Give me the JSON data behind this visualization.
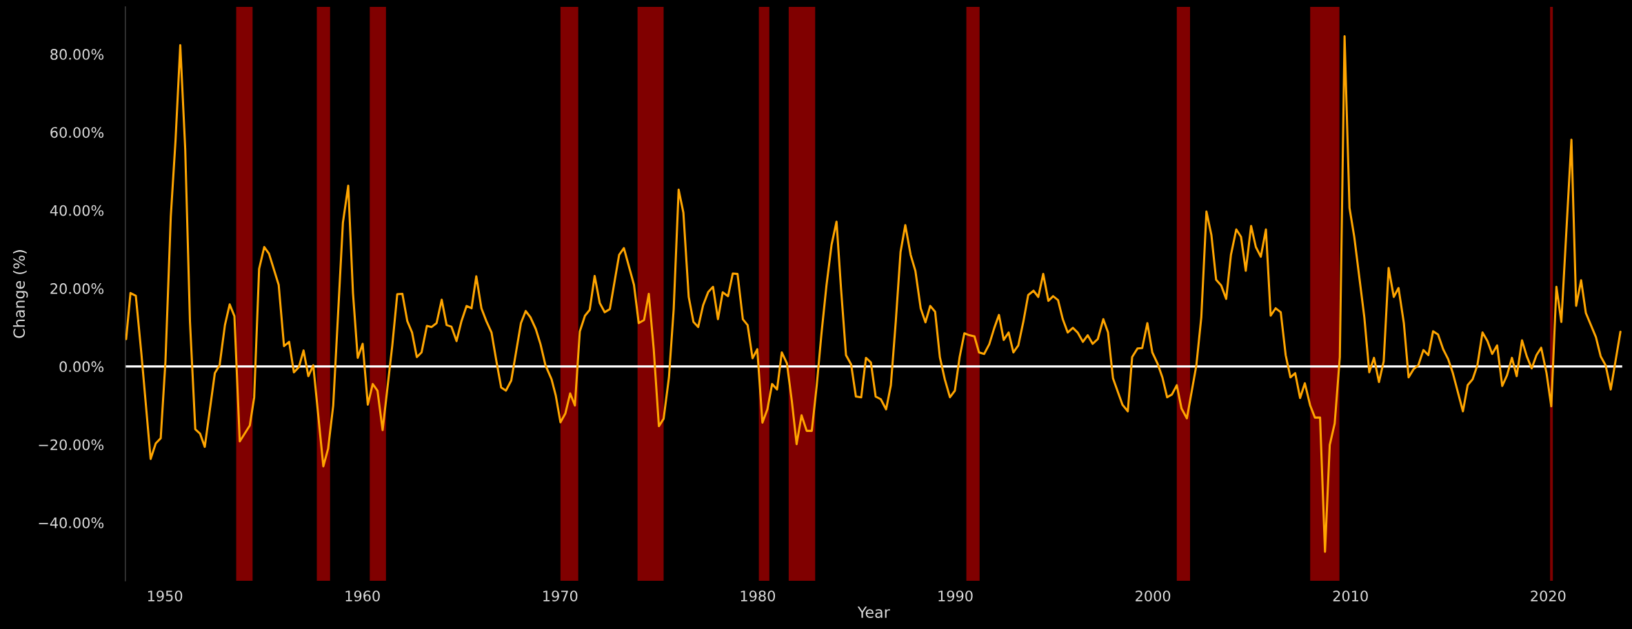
{
  "chart_data": {
    "type": "line",
    "xlabel": "Year",
    "ylabel": "Change (%)",
    "x": [
      1948.04,
      1948.26,
      1948.53,
      1948.81,
      1949.28,
      1949.54,
      1949.79,
      1950.03,
      1950.3,
      1950.54,
      1950.78,
      1951.03,
      1951.27,
      1951.54,
      1951.78,
      1952.02,
      1952.53,
      1952.77,
      1953.04,
      1953.28,
      1953.52,
      1953.79,
      1954.3,
      1954.52,
      1954.77,
      1955.03,
      1955.27,
      1955.76,
      1956.03,
      1956.29,
      1956.53,
      1956.78,
      1957.02,
      1957.26,
      1957.51,
      1958.02,
      1958.26,
      1958.52,
      1959.01,
      1959.28,
      1959.52,
      1959.76,
      1960.01,
      1960.27,
      1960.52,
      1960.76,
      1961.02,
      1961.51,
      1961.76,
      1962.02,
      1962.27,
      1962.51,
      1962.75,
      1962.99,
      1963.26,
      1963.5,
      1963.75,
      1964.01,
      1964.26,
      1964.5,
      1964.76,
      1965.01,
      1965.27,
      1965.52,
      1965.76,
      1966.02,
      1966.27,
      1966.53,
      1966.78,
      1967.02,
      1967.26,
      1967.53,
      1968.02,
      1968.26,
      1968.5,
      1968.77,
      1969.01,
      1969.26,
      1969.57,
      1969.78,
      1970.02,
      1970.27,
      1970.51,
      1970.75,
      1971.0,
      1971.26,
      1971.5,
      1971.75,
      1972.01,
      1972.26,
      1972.52,
      1972.99,
      1973.23,
      1973.74,
      1973.98,
      1974.25,
      1974.49,
      1974.74,
      1975.0,
      1975.24,
      1975.51,
      1975.75,
      1976.0,
      1976.24,
      1976.51,
      1976.75,
      1976.99,
      1977.24,
      1977.5,
      1977.74,
      1977.99,
      1978.23,
      1978.5,
      1978.74,
      1978.98,
      1979.25,
      1979.49,
      1979.74,
      1979.98,
      1980.24,
      1980.49,
      1980.73,
      1980.98,
      1981.22,
      1981.48,
      1981.73,
      1981.97,
      1982.22,
      1982.48,
      1982.74,
      1982.99,
      1983.23,
      1983.48,
      1983.74,
      1983.99,
      1984.22,
      1984.47,
      1984.73,
      1984.97,
      1985.24,
      1985.48,
      1985.73,
      1985.97,
      1986.23,
      1986.5,
      1986.74,
      1986.99,
      1987.23,
      1987.47,
      1987.74,
      1987.98,
      1988.25,
      1988.49,
      1988.73,
      1988.98,
      1989.22,
      1989.47,
      1989.73,
      1989.98,
      1990.22,
      1990.46,
      1990.71,
      1990.97,
      1991.2,
      1991.46,
      1991.72,
      1991.97,
      1992.21,
      1992.45,
      1992.7,
      1992.94,
      1993.19,
      1993.45,
      1993.69,
      1993.96,
      1994.2,
      1994.45,
      1994.71,
      1994.95,
      1995.2,
      1995.44,
      1995.69,
      1995.95,
      1996.19,
      1996.46,
      1996.7,
      1996.95,
      1997.21,
      1997.49,
      1997.73,
      1997.98,
      1998.46,
      1998.73,
      1998.95,
      1999.22,
      1999.46,
      1999.72,
      1999.97,
      2000.23,
      2000.48,
      2000.72,
      2000.96,
      2001.21,
      2001.45,
      2001.72,
      2002.2,
      2002.45,
      2002.71,
      2002.96,
      2003.2,
      2003.46,
      2003.71,
      2003.95,
      2004.22,
      2004.46,
      2004.7,
      2004.97,
      2005.21,
      2005.46,
      2005.72,
      2005.96,
      2006.21,
      2006.47,
      2006.72,
      2006.96,
      2007.2,
      2007.45,
      2007.69,
      2007.96,
      2008.2,
      2008.46,
      2008.71,
      2008.95,
      2009.2,
      2009.46,
      2009.7,
      2009.95,
      2010.19,
      2010.7,
      2010.95,
      2011.19,
      2011.44,
      2011.68,
      2011.93,
      2012.19,
      2012.43,
      2012.7,
      2012.94,
      2013.19,
      2013.43,
      2013.69,
      2013.94,
      2014.18,
      2014.43,
      2014.69,
      2014.94,
      2015.18,
      2015.69,
      2015.93,
      2016.18,
      2016.42,
      2016.68,
      2016.93,
      2017.17,
      2017.42,
      2017.68,
      2017.92,
      2018.17,
      2018.41,
      2018.68,
      2018.92,
      2019.17,
      2019.41,
      2019.65,
      2019.92,
      2020.16,
      2020.42,
      2020.67,
      2021.18,
      2021.42,
      2021.67,
      2021.91,
      2022.42,
      2022.66,
      2022.91,
      2023.17,
      2023.66
    ],
    "series": [
      {
        "color": "#ffa500",
        "values": [
          7.0,
          18.8,
          18.1,
          3.4,
          -23.7,
          -19.7,
          -18.4,
          1.3,
          38.4,
          57.9,
          82.3,
          55.8,
          11.6,
          -16.1,
          -17.2,
          -20.6,
          -1.7,
          0.3,
          10.6,
          15.9,
          12.9,
          -19.2,
          -15.1,
          -7.9,
          25.0,
          30.6,
          28.9,
          20.9,
          5.2,
          6.3,
          -1.5,
          -0.2,
          4.1,
          -2.5,
          0.3,
          -25.6,
          -21.1,
          -10.0,
          36.8,
          46.3,
          18.8,
          2.2,
          5.8,
          -9.8,
          -4.5,
          -6.2,
          -16.3,
          5.4,
          18.5,
          18.6,
          11.6,
          8.7,
          2.4,
          3.6,
          10.4,
          10.1,
          11.1,
          17.1,
          10.6,
          10.2,
          6.5,
          11.6,
          15.5,
          14.9,
          23.1,
          14.9,
          11.6,
          8.7,
          1.3,
          -5.4,
          -6.2,
          -3.6,
          11.1,
          14.2,
          12.6,
          9.6,
          5.7,
          0.3,
          -3.3,
          -7.4,
          -14.3,
          -12.0,
          -6.9,
          -10.0,
          9.0,
          13.0,
          14.5,
          23.2,
          16.2,
          13.9,
          14.7,
          28.6,
          30.3,
          20.9,
          11.1,
          11.9,
          18.6,
          4.4,
          -15.3,
          -13.4,
          -2.8,
          14.7,
          45.3,
          39.4,
          17.8,
          11.4,
          10.1,
          15.7,
          19.1,
          20.4,
          12.1,
          19.0,
          18.0,
          23.8,
          23.7,
          12.1,
          10.6,
          2.1,
          4.4,
          -14.4,
          -11.0,
          -4.5,
          -5.9,
          3.6,
          0.8,
          -8.9,
          -19.9,
          -12.5,
          -16.5,
          -16.5,
          -4.8,
          8.5,
          20.7,
          31.2,
          37.1,
          19.8,
          2.9,
          0.5,
          -7.7,
          -7.9,
          2.2,
          1.0,
          -7.7,
          -8.4,
          -11.0,
          -4.8,
          11.6,
          29.3,
          36.2,
          28.6,
          24.5,
          14.9,
          11.3,
          15.5,
          14.0,
          2.4,
          -3.3,
          -7.9,
          -6.2,
          2.4,
          8.5,
          8.0,
          7.7,
          3.6,
          3.2,
          5.7,
          9.8,
          13.2,
          6.8,
          8.7,
          3.6,
          5.4,
          11.6,
          18.3,
          19.4,
          17.8,
          23.7,
          16.8,
          18.0,
          17.0,
          12.1,
          8.7,
          9.9,
          8.7,
          6.3,
          8.0,
          5.8,
          7.0,
          12.1,
          8.7,
          -3.0,
          -9.8,
          -11.5,
          2.4,
          4.6,
          4.7,
          11.1,
          3.6,
          0.8,
          -2.8,
          -7.9,
          -7.2,
          -4.8,
          -10.8,
          -13.3,
          0.3,
          12.6,
          39.7,
          33.7,
          22.2,
          20.7,
          17.3,
          28.6,
          35.1,
          33.2,
          24.5,
          36.0,
          30.6,
          28.1,
          35.1,
          13.0,
          14.9,
          13.9,
          2.9,
          -2.8,
          -1.7,
          -8.1,
          -4.3,
          -10.0,
          -13.1,
          -13.1,
          -47.5,
          -20.1,
          -14.6,
          2.4,
          84.6,
          40.6,
          33.2,
          12.6,
          -1.5,
          2.2,
          -4.0,
          1.3,
          25.2,
          17.8,
          20.1,
          11.1,
          -2.8,
          -0.7,
          0.3,
          4.2,
          2.9,
          9.0,
          8.2,
          4.4,
          1.9,
          -1.7,
          -11.5,
          -4.8,
          -3.3,
          0.3,
          8.7,
          6.5,
          3.2,
          5.4,
          -5.0,
          -2.3,
          2.2,
          -2.5,
          6.7,
          2.6,
          -0.5,
          2.9,
          4.8,
          -1.7,
          -10.2,
          20.4,
          11.4,
          58.1,
          15.5,
          22.1,
          13.7,
          7.5,
          2.6,
          0.3,
          -5.9,
          8.9
        ]
      }
    ],
    "xlim": [
      1948,
      2023.75
    ],
    "xticks": [
      1950,
      1960,
      1970,
      1980,
      1990,
      2000,
      2010,
      2020
    ],
    "ylim": [
      -54.9,
      92.1
    ],
    "yticks": [
      {
        "value": -40,
        "label": "−40.00%"
      },
      {
        "value": -20,
        "label": "−20.00%"
      },
      {
        "value": 0,
        "label": "0.00%"
      },
      {
        "value": 20,
        "label": "20.00%"
      },
      {
        "value": 40,
        "label": "40.00%"
      },
      {
        "value": 60,
        "label": "60.00%"
      },
      {
        "value": 80,
        "label": "80.00%"
      }
    ],
    "ref_lines": [
      {
        "axis": "y",
        "value": 0,
        "color": "#ffffff"
      }
    ],
    "bands": [
      {
        "axis": "x",
        "from": 1953.61,
        "to": 1954.44,
        "color": "#800000"
      },
      {
        "axis": "x",
        "from": 1957.69,
        "to": 1958.36,
        "color": "#800000"
      },
      {
        "axis": "x",
        "from": 1960.37,
        "to": 1961.19,
        "color": "#800000"
      },
      {
        "axis": "x",
        "from": 1970.02,
        "to": 1970.92,
        "color": "#800000"
      },
      {
        "axis": "x",
        "from": 1973.92,
        "to": 1975.24,
        "color": "#800000"
      },
      {
        "axis": "x",
        "from": 1980.06,
        "to": 1980.59,
        "color": "#800000"
      },
      {
        "axis": "x",
        "from": 1981.57,
        "to": 1982.91,
        "color": "#800000"
      },
      {
        "axis": "x",
        "from": 1990.56,
        "to": 1991.23,
        "color": "#800000"
      },
      {
        "axis": "x",
        "from": 2001.21,
        "to": 2001.88,
        "color": "#800000"
      },
      {
        "axis": "x",
        "from": 2007.96,
        "to": 2009.44,
        "color": "#800000"
      },
      {
        "axis": "x",
        "from": 2020.1,
        "to": 2020.24,
        "color": "#800000"
      }
    ]
  }
}
